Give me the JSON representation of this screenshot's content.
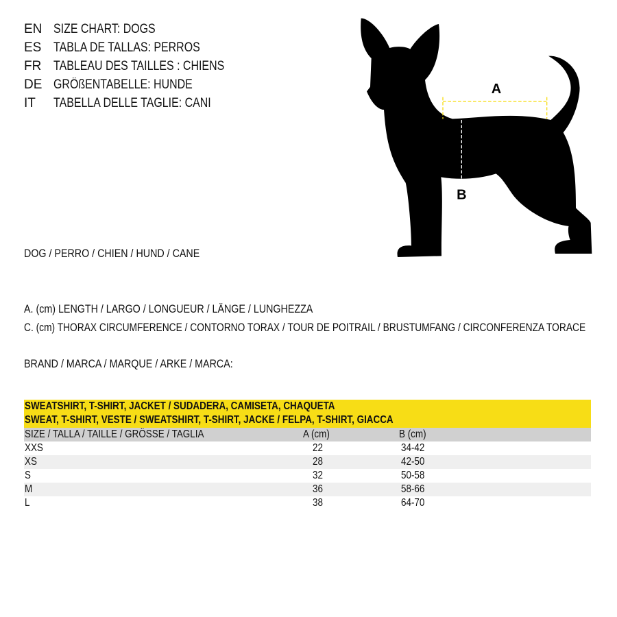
{
  "titles": [
    {
      "code": "EN",
      "text": "SIZE CHART: DOGS"
    },
    {
      "code": "ES",
      "text": "TABLA DE TALLAS: PERROS"
    },
    {
      "code": "FR",
      "text": "TABLEAU DES TAILLES : CHIENS"
    },
    {
      "code": "DE",
      "text": "GRÖßENTABELLE: HUNDE"
    },
    {
      "code": "IT",
      "text": "TABELLA DELLE TAGLIE: CANI"
    }
  ],
  "animal_line": "DOG / PERRO / CHIEN / HUND / CANE",
  "legend": {
    "a": "A. (cm) LENGTH / LARGO / LONGUEUR / LÄNGE / LUNGHEZZA",
    "c": "C. (cm) THORAX CIRCUMFERENCE / CONTORNO TORAX / TOUR DE POITRAIL / BRUSTUMFANG / CIRCONFERENZA TORACE"
  },
  "brand_line": "BRAND / MARCA / MARQUE / ARKE / MARCA:",
  "diagram": {
    "label_a": "A",
    "label_b": "B",
    "accent_color": "#f7dd16"
  },
  "table": {
    "title_line1": "SWEATSHIRT, T-SHIRT, JACKET / SUDADERA, CAMISETA, CHAQUETA",
    "title_line2": "SWEAT, T-SHIRT, VESTE / SWEATSHIRT, T-SHIRT, JACKE / FELPA, T-SHIRT, GIACCA",
    "headers": [
      "SIZE / TALLA / TAILLE / GRÖSSE / TAGLIA",
      "A (cm)",
      "B (cm)"
    ],
    "rows": [
      [
        "XXS",
        "22",
        "34-42"
      ],
      [
        "XS",
        "28",
        "42-50"
      ],
      [
        "S",
        "32",
        "50-58"
      ],
      [
        "M",
        "36",
        "58-66"
      ],
      [
        "L",
        "38",
        "64-70"
      ]
    ]
  }
}
